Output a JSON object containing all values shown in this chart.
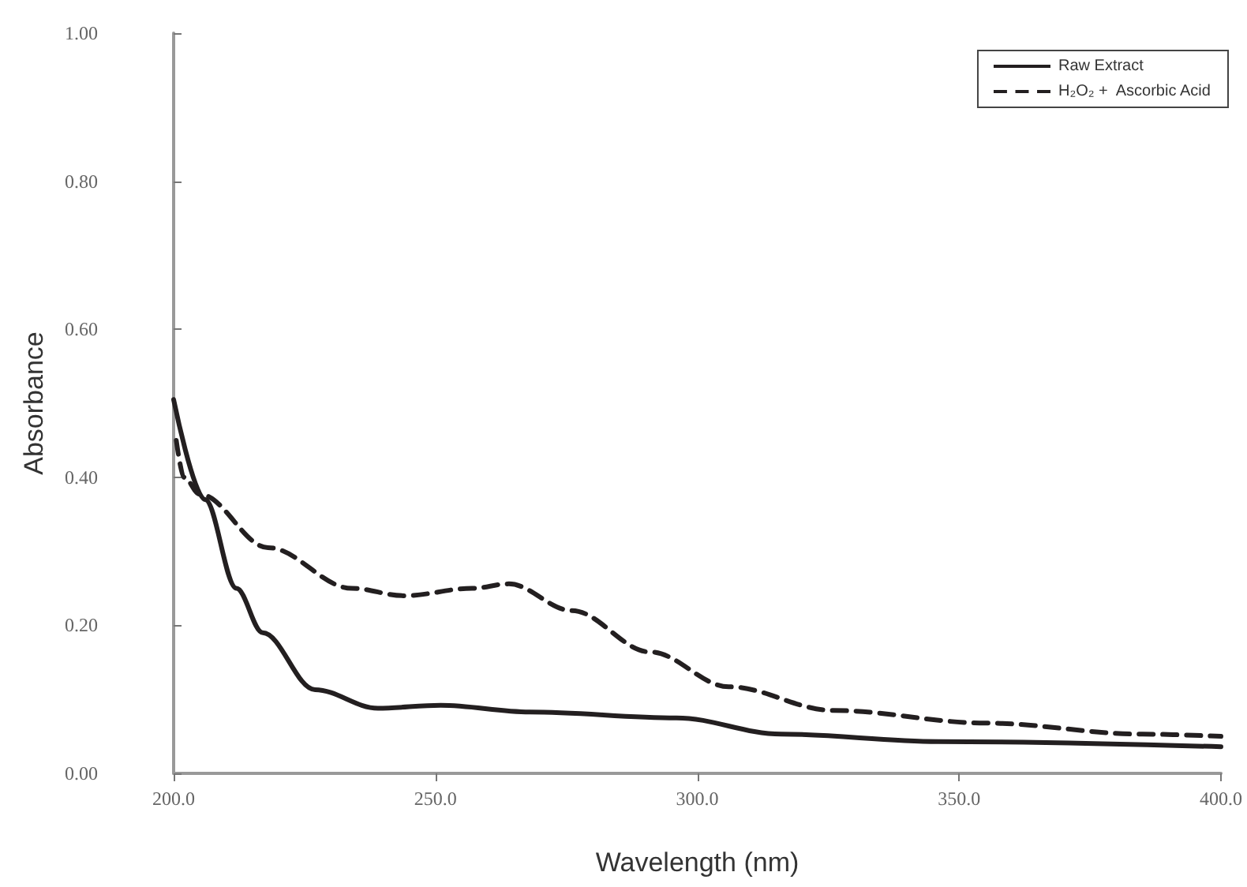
{
  "chart_data": {
    "type": "line",
    "xlabel": "Wavelength (nm)",
    "ylabel": "Absorbance",
    "xlim": [
      200,
      400
    ],
    "ylim": [
      0,
      1
    ],
    "xticks": [
      {
        "value": 200,
        "label": "200.0"
      },
      {
        "value": 250,
        "label": "250.0"
      },
      {
        "value": 300,
        "label": "300.0"
      },
      {
        "value": 350,
        "label": "350.0"
      },
      {
        "value": 400,
        "label": "400.0"
      }
    ],
    "yticks": [
      {
        "value": 0,
        "label": "0.00"
      },
      {
        "value": 0.2,
        "label": "0.20"
      },
      {
        "value": 0.4,
        "label": "0.40"
      },
      {
        "value": 0.6,
        "label": "0.60"
      },
      {
        "value": 0.8,
        "label": "0.80"
      },
      {
        "value": 1,
        "label": "1.00"
      }
    ],
    "grid": false,
    "legend": "top right",
    "marker": "none",
    "series": [
      {
        "name": "Raw Extract",
        "color": "#231f20",
        "line_style": "solid",
        "x": [
          200,
          206,
          212,
          217,
          227,
          239,
          251,
          268,
          296,
          316,
          346,
          400
        ],
        "values": [
          0.505,
          0.37,
          0.25,
          0.19,
          0.113,
          0.088,
          0.092,
          0.083,
          0.075,
          0.053,
          0.043,
          0.036
        ]
      },
      {
        "name": "H₂O₂ +  Ascorbic Acid",
        "color": "#231f20",
        "line_style": "dashed",
        "x": [
          200.5,
          202,
          205,
          218,
          234,
          244,
          257,
          264,
          276,
          291,
          306,
          326,
          355,
          385,
          400
        ],
        "values": [
          0.45,
          0.4,
          0.377,
          0.305,
          0.25,
          0.24,
          0.25,
          0.256,
          0.22,
          0.164,
          0.117,
          0.085,
          0.068,
          0.053,
          0.05
        ]
      }
    ]
  }
}
